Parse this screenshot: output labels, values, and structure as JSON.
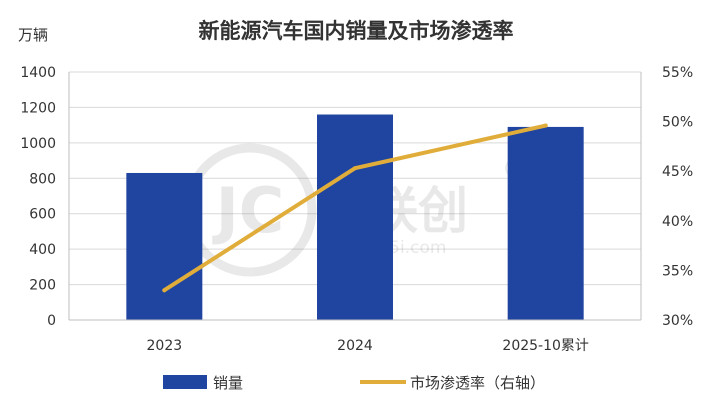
{
  "chart_data": {
    "type": "bar",
    "title": "新能源汽车国内销量及市场渗透率",
    "ylabel_left": "万辆",
    "ylabel_right": "",
    "categories": [
      "2023",
      "2024",
      "2025-10累计"
    ],
    "left_axis": {
      "ylim": [
        0,
        1400
      ],
      "ticks": [
        "0",
        "200",
        "400",
        "600",
        "800",
        "1000",
        "1200",
        "1400"
      ]
    },
    "right_axis": {
      "ylim": [
        30,
        55
      ],
      "ticks": [
        "30%",
        "35%",
        "40%",
        "45%",
        "50%",
        "55%"
      ]
    },
    "series": [
      {
        "name": "销量",
        "kind": "bar",
        "axis": "left",
        "values": [
          830,
          1160,
          1090
        ],
        "color": "#1f45a0"
      },
      {
        "name": "市场渗透率（右轴）",
        "kind": "line",
        "axis": "right",
        "values": [
          33.0,
          45.3,
          49.6
        ],
        "color": "#e0ad3a"
      }
    ],
    "grid": true,
    "legend_position": "bottom"
  },
  "watermark": {
    "brand": "金联创",
    "url": "www.315i.com"
  }
}
